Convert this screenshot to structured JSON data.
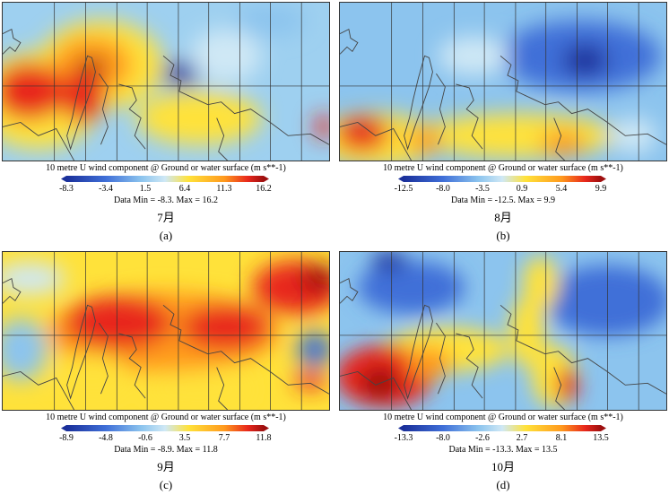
{
  "panels": [
    {
      "variable": "10 metre U wind component @ Ground or water surface (m s**-1)",
      "ticks": [
        "-8.3",
        "-3.4",
        "1.5",
        "6.4",
        "11.3",
        "16.2"
      ],
      "minmax": "Data Min = -8.3. Max = 16.2",
      "month": "7月",
      "letter": "(a)"
    },
    {
      "variable": "10 metre U wind component @ Ground or water surface (m s**-1)",
      "ticks": [
        "-12.5",
        "-8.0",
        "-3.5",
        "0.9",
        "5.4",
        "9.9"
      ],
      "minmax": "Data Min = -12.5. Max = 9.9",
      "month": "8月",
      "letter": "(b)"
    },
    {
      "variable": "10 metre U wind component @ Ground or water surface (m s**-1)",
      "ticks": [
        "-8.9",
        "-4.8",
        "-0.6",
        "3.5",
        "7.7",
        "11.8"
      ],
      "minmax": "Data Min = -8.9. Max = 11.8",
      "month": "9月",
      "letter": "(c)"
    },
    {
      "variable": "10 metre U wind component @ Ground or water surface (m s**-1)",
      "ticks": [
        "-13.3",
        "-8.0",
        "-2.6",
        "2.7",
        "8.1",
        "13.5"
      ],
      "minmax": "Data Min = -13.3. Max = 13.5",
      "month": "10月",
      "letter": "(d)"
    }
  ],
  "colors": {
    "dark_blue": "#1a2f9a",
    "blue": "#3f6fd8",
    "light_blue": "#8cc4ee",
    "pale_blue": "#cfe8f5",
    "yellow": "#ffe23a",
    "orange": "#ff9a1e",
    "red": "#e8281c",
    "dark_red": "#9e0f0f",
    "coastline": "#444444",
    "grid": "#333333"
  }
}
